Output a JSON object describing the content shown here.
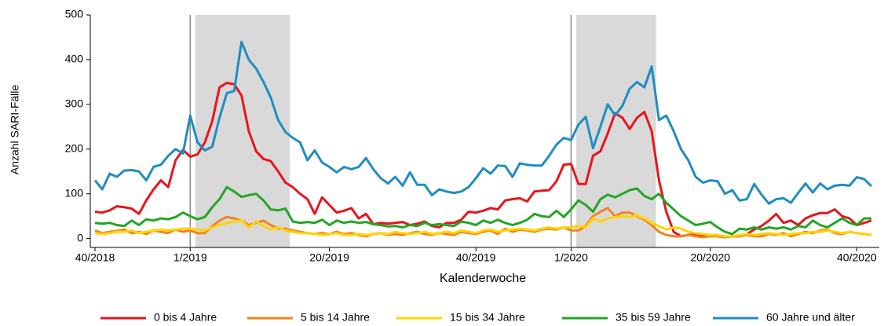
{
  "chart_data": {
    "type": "line",
    "y_label": "Anzahl SARI-Fälle",
    "x_label": "Kalenderwoche",
    "categories": [
      "40/2018",
      null,
      null,
      null,
      null,
      null,
      null,
      null,
      null,
      null,
      null,
      null,
      null,
      "1/2019",
      null,
      null,
      null,
      null,
      null,
      null,
      null,
      null,
      null,
      null,
      null,
      null,
      null,
      null,
      null,
      null,
      null,
      null,
      "20/2019",
      null,
      null,
      null,
      null,
      null,
      null,
      null,
      null,
      null,
      null,
      null,
      null,
      null,
      null,
      null,
      null,
      null,
      null,
      null,
      "40/2019",
      null,
      null,
      null,
      null,
      null,
      null,
      null,
      null,
      null,
      null,
      null,
      null,
      "1/2020",
      null,
      null,
      null,
      null,
      null,
      null,
      null,
      null,
      null,
      null,
      null,
      null,
      null,
      null,
      null,
      null,
      null,
      null,
      "20/2020",
      null,
      null,
      null,
      null,
      null,
      null,
      null,
      null,
      null,
      null,
      null,
      null,
      null,
      null,
      null,
      null,
      null,
      null,
      null,
      "40/2020",
      null,
      null
    ],
    "ylim": [
      -20,
      500
    ],
    "yticks": [
      0,
      100,
      200,
      300,
      400,
      500
    ],
    "series": [
      {
        "name": "0 bis 4 Jahre",
        "color": "#e8141c",
        "values": [
          60,
          58,
          63,
          72,
          70,
          67,
          55,
          85,
          110,
          130,
          115,
          175,
          198,
          183,
          188,
          215,
          262,
          338,
          348,
          345,
          320,
          240,
          195,
          178,
          173,
          150,
          125,
          115,
          100,
          88,
          55,
          92,
          75,
          58,
          62,
          68,
          45,
          55,
          32,
          35,
          33,
          35,
          37,
          30,
          33,
          38,
          28,
          25,
          35,
          35,
          42,
          60,
          58,
          62,
          68,
          65,
          85,
          88,
          90,
          83,
          105,
          107,
          108,
          128,
          165,
          167,
          122,
          122,
          185,
          195,
          235,
          280,
          270,
          245,
          270,
          283,
          240,
          130,
          60,
          15,
          5,
          8,
          10,
          8,
          8,
          5,
          3,
          5,
          5,
          10,
          20,
          28,
          40,
          55,
          35,
          40,
          30,
          45,
          52,
          57,
          57,
          65,
          50,
          45,
          30,
          35,
          40
        ]
      },
      {
        "name": "5 bis 14 Jahre",
        "color": "#f5821f",
        "values": [
          18,
          12,
          15,
          17,
          20,
          12,
          15,
          10,
          18,
          15,
          12,
          20,
          15,
          18,
          12,
          12,
          28,
          40,
          48,
          45,
          40,
          30,
          35,
          40,
          30,
          22,
          22,
          18,
          15,
          12,
          10,
          12,
          10,
          15,
          10,
          12,
          8,
          5,
          10,
          12,
          8,
          10,
          8,
          12,
          15,
          10,
          8,
          12,
          10,
          8,
          15,
          12,
          10,
          15,
          18,
          10,
          22,
          15,
          20,
          18,
          15,
          20,
          22,
          20,
          25,
          18,
          18,
          28,
          50,
          60,
          68,
          50,
          58,
          58,
          50,
          42,
          30,
          15,
          8,
          5,
          5,
          8,
          5,
          3,
          5,
          5,
          3,
          5,
          5,
          8,
          5,
          5,
          10,
          8,
          12,
          5,
          10,
          15,
          12,
          18,
          20,
          12,
          10,
          15,
          12,
          10,
          8
        ]
      },
      {
        "name": "15 bis 34 Jahre",
        "color": "#ffd400",
        "values": [
          12,
          10,
          12,
          15,
          15,
          18,
          12,
          15,
          18,
          20,
          18,
          20,
          22,
          22,
          20,
          18,
          25,
          30,
          35,
          38,
          40,
          25,
          38,
          28,
          20,
          25,
          18,
          15,
          12,
          12,
          10,
          8,
          10,
          12,
          8,
          8,
          10,
          8,
          10,
          12,
          10,
          15,
          12,
          10,
          12,
          15,
          10,
          12,
          15,
          12,
          18,
          15,
          12,
          18,
          20,
          15,
          18,
          20,
          22,
          20,
          18,
          22,
          25,
          22,
          25,
          25,
          28,
          25,
          45,
          38,
          45,
          48,
          50,
          48,
          52,
          45,
          35,
          28,
          20,
          25,
          22,
          15,
          12,
          10,
          8,
          8,
          5,
          5,
          8,
          10,
          8,
          10,
          12,
          10,
          8,
          10,
          12,
          12,
          15,
          15,
          18,
          15,
          12,
          15,
          12,
          10,
          8
        ]
      },
      {
        "name": "35 bis 59 Jahre",
        "color": "#22a624",
        "values": [
          35,
          33,
          35,
          30,
          28,
          40,
          30,
          43,
          40,
          45,
          43,
          48,
          58,
          50,
          43,
          48,
          70,
          88,
          115,
          105,
          93,
          97,
          100,
          85,
          65,
          63,
          67,
          38,
          35,
          37,
          35,
          42,
          30,
          40,
          35,
          38,
          35,
          37,
          32,
          30,
          27,
          28,
          25,
          30,
          28,
          35,
          30,
          32,
          30,
          28,
          38,
          35,
          30,
          40,
          35,
          42,
          35,
          30,
          35,
          42,
          55,
          50,
          48,
          62,
          48,
          65,
          85,
          75,
          60,
          88,
          98,
          92,
          100,
          108,
          112,
          95,
          88,
          100,
          80,
          65,
          50,
          40,
          30,
          33,
          37,
          25,
          15,
          10,
          22,
          20,
          25,
          20,
          25,
          22,
          25,
          20,
          28,
          25,
          40,
          30,
          25,
          35,
          45,
          35,
          30,
          45,
          45
        ]
      },
      {
        "name": "60 Jahre und älter",
        "color": "#1f8dc1",
        "values": [
          130,
          110,
          145,
          138,
          152,
          153,
          150,
          130,
          160,
          165,
          185,
          200,
          190,
          275,
          215,
          197,
          205,
          270,
          325,
          330,
          440,
          400,
          380,
          350,
          315,
          265,
          238,
          225,
          215,
          175,
          197,
          170,
          160,
          148,
          160,
          155,
          160,
          180,
          155,
          135,
          123,
          138,
          118,
          148,
          120,
          120,
          97,
          110,
          105,
          102,
          105,
          115,
          135,
          157,
          145,
          163,
          162,
          138,
          168,
          165,
          163,
          163,
          185,
          210,
          225,
          220,
          255,
          272,
          202,
          250,
          300,
          275,
          297,
          335,
          350,
          338,
          385,
          265,
          275,
          240,
          200,
          175,
          138,
          125,
          130,
          128,
          100,
          108,
          85,
          88,
          122,
          98,
          78,
          88,
          90,
          80,
          102,
          123,
          103,
          123,
          110,
          118,
          120,
          118,
          137,
          133,
          117
        ]
      }
    ]
  }
}
